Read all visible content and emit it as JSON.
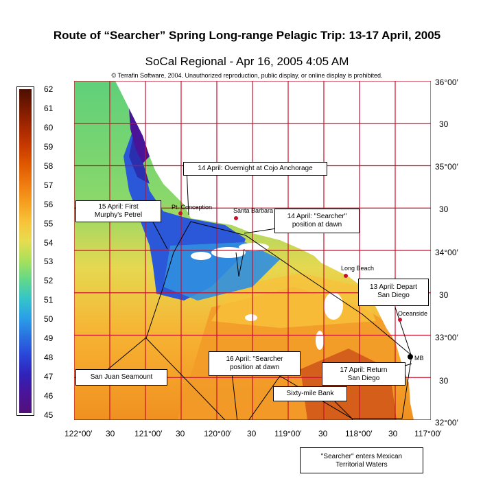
{
  "title": "Route of “Searcher” Spring Long-range Pelagic Trip:  13-17 April, 2005",
  "map_title": "SoCal Regional - Apr 16, 2005 4:05 AM",
  "copyright": "© Terrafin Software,  2004.  Unauthorized reproduction, public display, or online display is prohibited.",
  "colorbar": {
    "ticks": [
      "62",
      "61",
      "60",
      "59",
      "58",
      "57",
      "56",
      "55",
      "54",
      "53",
      "52",
      "51",
      "50",
      "49",
      "48",
      "47",
      "46",
      "45"
    ],
    "colors": [
      "#4b0f00",
      "#7a1a00",
      "#a52800",
      "#c83a00",
      "#e05a00",
      "#ef7c10",
      "#f6a020",
      "#f8c43a",
      "#e6dc50",
      "#a8e05a",
      "#62d88a",
      "#35c4c8",
      "#2aa0e8",
      "#2a70e0",
      "#2a44d8",
      "#3022b8",
      "#4a1498",
      "#52107a"
    ]
  },
  "axes": {
    "lat_labels": [
      "36°00′",
      "30",
      "35°00′",
      "30",
      "34°00′",
      "30",
      "33°00′",
      "30",
      "32°00′"
    ],
    "lon_labels": [
      "122°00′",
      "30",
      "121°00′",
      "30",
      "120°00′",
      "30",
      "119°00′",
      "30",
      "118°00′",
      "30",
      "117°00′"
    ]
  },
  "places": {
    "pt_conception": "Pt. Conception",
    "santa_barbara": "Santa Barbara",
    "long_beach": "Long Beach",
    "oceanside": "Oceanside",
    "mb": "MB"
  },
  "callouts": {
    "cojo": "14 April:  Overnight at Cojo Anchorage",
    "first_petrel_1": "15 April:  First",
    "first_petrel_2": "Murphy's Petrel",
    "searcher_dawn_14_1": "14 April:  \"Searcher\"",
    "searcher_dawn_14_2": "position at dawn",
    "depart_1": "13 April:  Depart",
    "depart_2": "San Diego",
    "seamount": "San Juan Seamount",
    "searcher_dawn_16_1": "16 April:  \"Searcher",
    "searcher_dawn_16_2": "position at dawn",
    "return_1": "17 April:  Return",
    "return_2": "San Diego",
    "sixty_mile": "Sixty-mile Bank",
    "mexican_1": "\"Searcher\" enters Mexican",
    "mexican_2": "Territorial Waters"
  }
}
